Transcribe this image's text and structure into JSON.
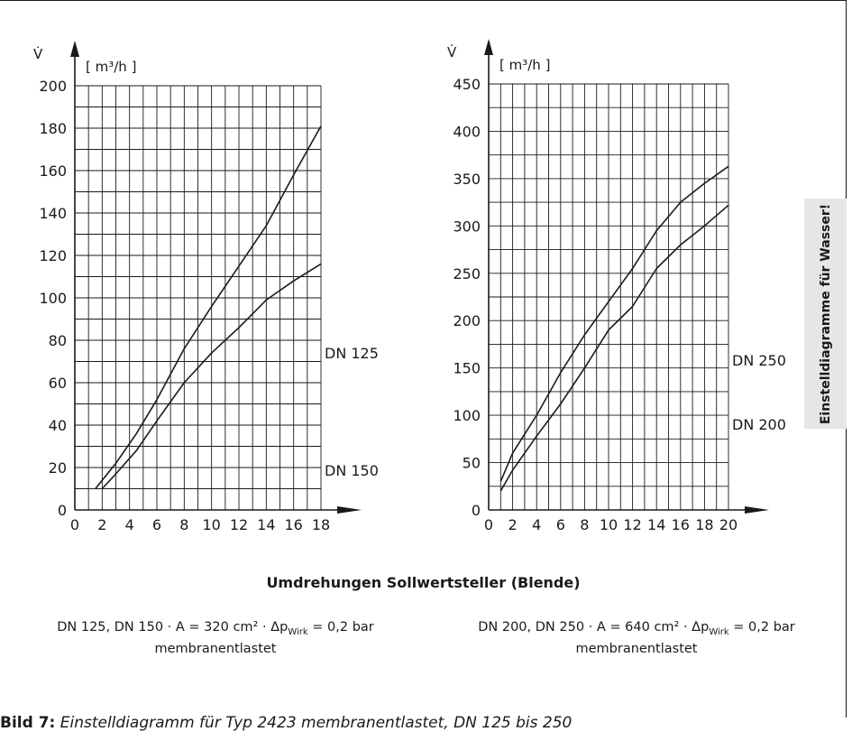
{
  "chart_data": [
    {
      "type": "line",
      "ylabel_symbol": "V̇",
      "yunit": "[ m³/h ]",
      "xlim": [
        0,
        18
      ],
      "ylim": [
        0,
        200
      ],
      "xticks": [
        0,
        2,
        4,
        6,
        8,
        10,
        12,
        14,
        16,
        18
      ],
      "yticks": [
        0,
        20,
        40,
        60,
        80,
        100,
        120,
        140,
        160,
        180,
        200
      ],
      "grid": true,
      "series": [
        {
          "name": "DN 150",
          "x": [
            1.5,
            3,
            4.5,
            6,
            8,
            10,
            12,
            14,
            16,
            18
          ],
          "y": [
            10,
            22,
            36,
            52,
            76,
            96,
            115,
            134,
            158,
            181
          ]
        },
        {
          "name": "DN 125",
          "x": [
            2,
            3,
            4.5,
            6,
            8,
            10,
            12,
            14,
            16,
            18
          ],
          "y": [
            10,
            17,
            28,
            42,
            60,
            74,
            86,
            99,
            108,
            116
          ]
        }
      ]
    },
    {
      "type": "line",
      "ylabel_symbol": "V̇",
      "yunit": "[ m³/h ]",
      "xlim": [
        0,
        20
      ],
      "ylim": [
        0,
        450
      ],
      "xticks": [
        0,
        2,
        4,
        6,
        8,
        10,
        12,
        14,
        16,
        18,
        20
      ],
      "yticks": [
        0,
        50,
        100,
        150,
        200,
        250,
        300,
        350,
        400,
        450
      ],
      "grid": true,
      "series": [
        {
          "name": "DN 250",
          "x": [
            1,
            2,
            4,
            6,
            8,
            10,
            12,
            14,
            16,
            18,
            20
          ],
          "y": [
            30,
            60,
            100,
            145,
            185,
            220,
            255,
            295,
            325,
            345,
            363
          ]
        },
        {
          "name": "DN 200",
          "x": [
            1,
            2,
            4,
            6,
            8,
            10,
            12,
            14,
            16,
            18,
            20
          ],
          "y": [
            20,
            42,
            78,
            112,
            150,
            190,
            215,
            255,
            280,
            300,
            322
          ]
        }
      ]
    }
  ],
  "xaxis_title": "Umdrehungen Sollwertsteller (Blende)",
  "notes": {
    "left_line1": "DN 125, DN 150 · A = 320 cm² · Δp",
    "left_sub": "Wirk",
    "left_line1_end": " = 0,2 bar",
    "left_line2": "membranentlastet",
    "right_line1": "DN 200, DN 250 · A = 640 cm² · Δp",
    "right_sub": "Wirk",
    "right_line1_end": " = 0,2 bar",
    "right_line2": "membranentlastet"
  },
  "side_label": "Einstelldiagramme für Wasser!",
  "caption": {
    "label": "Bild 7:",
    "text": "Einstelldiagramm für Typ 2423 membranentlastet, DN 125 bis 250"
  }
}
